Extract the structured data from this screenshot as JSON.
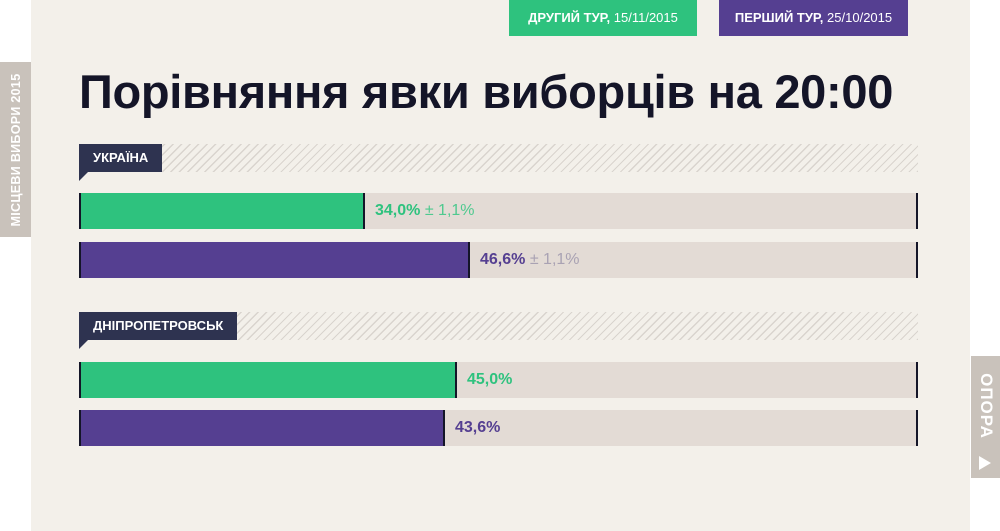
{
  "sidebar": {
    "label": "МІСЦЕВИ ВИБОРИ 2015"
  },
  "logo": {
    "text": "ОПОРА",
    "icon": "play-arrow-icon"
  },
  "legend": {
    "round2": {
      "label": "ДРУГИЙ ТУР,",
      "date": "15/11/2015",
      "color": "#2ec27e"
    },
    "round1": {
      "label": "ПЕРШИЙ ТУР,",
      "date": "25/10/2015",
      "color": "#553f91"
    }
  },
  "chart_data": {
    "type": "bar",
    "orientation": "horizontal",
    "title": "Порівняння явки виборців на 20:00",
    "xlim": [
      0,
      100
    ],
    "unit": "%",
    "series": [
      {
        "name": "ДРУГИЙ ТУР, 15/11/2015",
        "color": "#2ec27e"
      },
      {
        "name": "ПЕРШИЙ ТУР, 25/10/2015",
        "color": "#553f91"
      }
    ],
    "regions": [
      {
        "name": "УКРАЇНА",
        "bars": [
          {
            "series": 0,
            "value": 34.0,
            "label": "34,0%",
            "error": "± 1,1%"
          },
          {
            "series": 1,
            "value": 46.6,
            "label": "46,6%",
            "error": "± 1,1%"
          }
        ]
      },
      {
        "name": "ДНІПРОПЕТРОВСЬК",
        "bars": [
          {
            "series": 0,
            "value": 45.0,
            "label": "45,0%",
            "error": ""
          },
          {
            "series": 1,
            "value": 43.6,
            "label": "43,6%",
            "error": ""
          }
        ]
      }
    ]
  }
}
